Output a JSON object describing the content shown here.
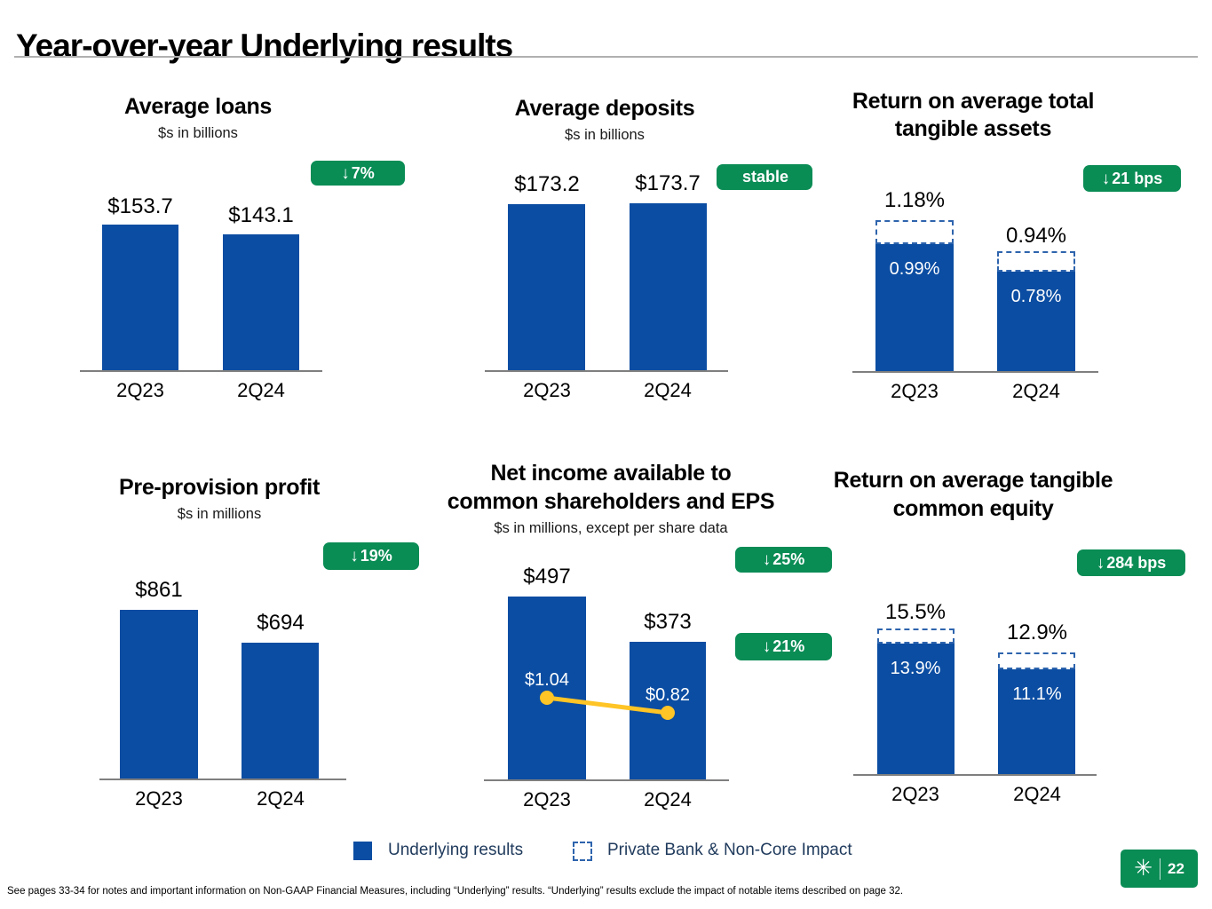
{
  "slide": {
    "title": "Year-over-year Underlying results",
    "footer": "See pages 33-34 for notes and important information on Non-GAAP Financial Measures, including “Underlying” results. “Underlying” results exclude the impact of notable items described on page 32.",
    "page_number": "22"
  },
  "legend": {
    "underlying": "Underlying results",
    "impact": "Private Bank & Non-Core Impact"
  },
  "colors": {
    "bar_blue": "#0B4DA2",
    "dashed_blue": "#2E64AD",
    "badge_green": "#0A8C55",
    "eps_yellow": "#FFC425",
    "legend_text": "#1F3A5C",
    "axis_gray": "#7F7F7F"
  },
  "chart_data": [
    {
      "type": "bar",
      "title": "Average loans",
      "subtitle": "$s in billions",
      "categories": [
        "2Q23",
        "2Q24"
      ],
      "values": [
        153.7,
        143.1
      ],
      "value_labels": [
        "$153.7",
        "$143.1"
      ],
      "badges": [
        {
          "arrow": "↓",
          "text": "7%"
        }
      ],
      "ylim": [
        0,
        160
      ]
    },
    {
      "type": "bar",
      "title": "Average deposits",
      "subtitle": "$s in billions",
      "categories": [
        "2Q23",
        "2Q24"
      ],
      "values": [
        173.2,
        173.7
      ],
      "value_labels": [
        "$173.2",
        "$173.7"
      ],
      "badges": [
        {
          "arrow": "",
          "text": "stable"
        }
      ],
      "ylim": [
        0,
        180
      ]
    },
    {
      "type": "stacked-bar",
      "title_line1": "Return on average total",
      "title_line2": "tangible assets",
      "categories": [
        "2Q23",
        "2Q24"
      ],
      "series": [
        {
          "name": "Underlying results",
          "values": [
            0.99,
            0.78
          ],
          "labels": [
            "0.99%",
            "0.78%"
          ]
        },
        {
          "name": "Private Bank & Non-Core Impact",
          "values": [
            0.19,
            0.16
          ]
        }
      ],
      "totals": [
        1.18,
        0.94
      ],
      "total_labels": [
        "1.18%",
        "0.94%"
      ],
      "badges": [
        {
          "arrow": "↓",
          "text": "21 bps"
        }
      ],
      "ylim": [
        0,
        1.3
      ]
    },
    {
      "type": "bar",
      "title": "Pre-provision profit",
      "subtitle": "$s in millions",
      "categories": [
        "2Q23",
        "2Q24"
      ],
      "values": [
        861,
        694
      ],
      "value_labels": [
        "$861",
        "$694"
      ],
      "badges": [
        {
          "arrow": "↓",
          "text": "19%"
        }
      ],
      "ylim": [
        0,
        900
      ]
    },
    {
      "type": "bar+line",
      "title_line1": "Net income available to",
      "title_line2": "common shareholders and EPS",
      "subtitle": "$s in millions, except per share data",
      "categories": [
        "2Q23",
        "2Q24"
      ],
      "values": [
        497,
        373
      ],
      "value_labels": [
        "$497",
        "$373"
      ],
      "line_series": {
        "name": "EPS",
        "values": [
          1.04,
          0.82
        ],
        "labels": [
          "$1.04",
          "$0.82"
        ]
      },
      "badges": [
        {
          "arrow": "↓",
          "text": "25%"
        },
        {
          "arrow": "↓",
          "text": "21%"
        }
      ],
      "ylim": [
        0,
        520
      ]
    },
    {
      "type": "stacked-bar",
      "title_line1": "Return on average tangible",
      "title_line2": "common equity",
      "categories": [
        "2Q23",
        "2Q24"
      ],
      "series": [
        {
          "name": "Underlying results",
          "values": [
            13.9,
            11.1
          ],
          "labels": [
            "13.9%",
            "11.1%"
          ]
        },
        {
          "name": "Private Bank & Non-Core Impact",
          "values": [
            1.6,
            1.8
          ]
        }
      ],
      "totals": [
        15.5,
        12.9
      ],
      "total_labels": [
        "15.5%",
        "12.9%"
      ],
      "badges": [
        {
          "arrow": "↓",
          "text": "284 bps"
        }
      ],
      "ylim": [
        0,
        17
      ]
    }
  ]
}
